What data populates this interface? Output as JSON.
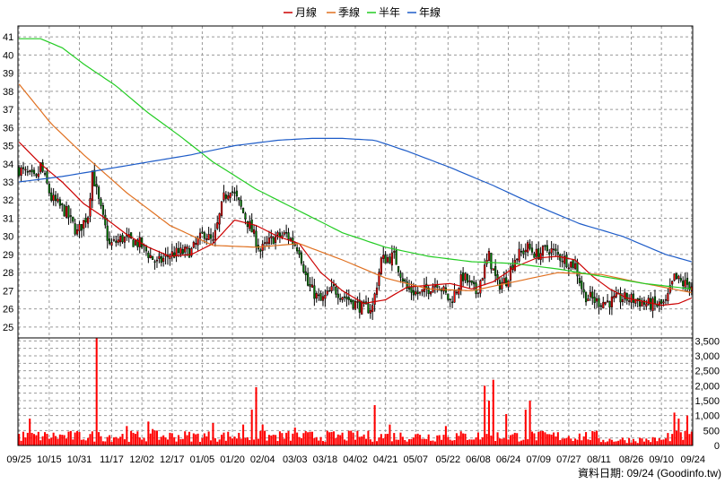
{
  "chart_data": [
    {
      "type": "candlestick",
      "legend": [
        {
          "name": "月線",
          "color": "#cc0000"
        },
        {
          "name": "季線",
          "color": "#e07020"
        },
        {
          "name": "半年",
          "color": "#22cc22"
        },
        {
          "name": "年線",
          "color": "#1e5cc8"
        }
      ],
      "legend_position": "top-center",
      "grid": true,
      "ylim": [
        24.4,
        41.6
      ],
      "y_ticks": [
        25,
        26,
        27,
        28,
        29,
        30,
        31,
        32,
        33,
        34,
        35,
        36,
        37,
        38,
        39,
        40,
        41
      ],
      "x_labels": [
        "09/25",
        "10/15",
        "10/31",
        "11/17",
        "12/02",
        "12/17",
        "01/05",
        "01/20",
        "02/04",
        "03/03",
        "03/18",
        "04/02",
        "04/21",
        "05/07",
        "05/22",
        "06/08",
        "06/24",
        "07/09",
        "07/27",
        "08/11",
        "08/26",
        "09/10",
        "09/24"
      ],
      "candle_colors": {
        "up": "#ff0000",
        "down": "#008000",
        "outline": "#000000"
      },
      "price_anchors": [
        [
          0,
          33.7
        ],
        [
          8,
          33.1
        ],
        [
          10,
          33.9
        ],
        [
          15,
          32.1
        ],
        [
          22,
          31.3
        ],
        [
          27,
          30.2
        ],
        [
          32,
          31.2
        ],
        [
          34,
          33.6
        ],
        [
          37,
          31.9
        ],
        [
          42,
          29.5
        ],
        [
          48,
          29.9
        ],
        [
          56,
          29.6
        ],
        [
          64,
          28.5
        ],
        [
          70,
          29.0
        ],
        [
          80,
          29.2
        ],
        [
          86,
          30.2
        ],
        [
          90,
          29.6
        ],
        [
          95,
          32.1
        ],
        [
          98,
          32.7
        ],
        [
          102,
          31.8
        ],
        [
          108,
          30.3
        ],
        [
          112,
          29.2
        ],
        [
          118,
          29.9
        ],
        [
          124,
          30.1
        ],
        [
          130,
          29.3
        ],
        [
          134,
          27.3
        ],
        [
          140,
          26.4
        ],
        [
          146,
          27.1
        ],
        [
          152,
          26.6
        ],
        [
          160,
          26.0
        ],
        [
          164,
          26.1
        ],
        [
          168,
          28.7
        ],
        [
          174,
          28.9
        ],
        [
          180,
          27.1
        ],
        [
          186,
          26.8
        ],
        [
          194,
          27.5
        ],
        [
          200,
          26.4
        ],
        [
          206,
          27.8
        ],
        [
          212,
          26.9
        ],
        [
          218,
          28.9
        ],
        [
          222,
          27.3
        ],
        [
          226,
          27.6
        ],
        [
          230,
          28.8
        ],
        [
          236,
          29.4
        ],
        [
          240,
          29.0
        ],
        [
          246,
          29.3
        ],
        [
          252,
          28.8
        ],
        [
          258,
          28.4
        ],
        [
          262,
          26.8
        ],
        [
          268,
          26.4
        ],
        [
          274,
          26.4
        ],
        [
          280,
          26.6
        ],
        [
          286,
          26.5
        ],
        [
          290,
          26.3
        ],
        [
          296,
          26.2
        ],
        [
          300,
          26.3
        ],
        [
          304,
          27.7
        ],
        [
          308,
          27.4
        ],
        [
          312,
          27.3
        ]
      ],
      "ma_series": [
        {
          "name": "月線",
          "points": [
            [
              0,
              35.2
            ],
            [
              10,
              34.0
            ],
            [
              20,
              33.0
            ],
            [
              30,
              31.8
            ],
            [
              40,
              31.0
            ],
            [
              50,
              30.1
            ],
            [
              60,
              29.4
            ],
            [
              70,
              28.9
            ],
            [
              80,
              29.0
            ],
            [
              90,
              29.6
            ],
            [
              100,
              30.9
            ],
            [
              110,
              30.6
            ],
            [
              120,
              30.0
            ],
            [
              130,
              29.6
            ],
            [
              140,
              28.0
            ],
            [
              150,
              27.0
            ],
            [
              160,
              26.3
            ],
            [
              170,
              26.5
            ],
            [
              180,
              27.2
            ],
            [
              190,
              27.3
            ],
            [
              200,
              27.4
            ],
            [
              210,
              27.1
            ],
            [
              220,
              27.5
            ],
            [
              230,
              28.3
            ],
            [
              240,
              28.8
            ],
            [
              250,
              28.9
            ],
            [
              258,
              28.7
            ],
            [
              266,
              27.8
            ],
            [
              274,
              27.1
            ],
            [
              282,
              26.6
            ],
            [
              290,
              26.4
            ],
            [
              298,
              26.2
            ],
            [
              306,
              26.3
            ],
            [
              312,
              26.6
            ]
          ]
        },
        {
          "name": "季線",
          "points": [
            [
              0,
              38.4
            ],
            [
              15,
              36.2
            ],
            [
              30,
              34.5
            ],
            [
              50,
              32.4
            ],
            [
              70,
              30.6
            ],
            [
              90,
              29.5
            ],
            [
              110,
              29.4
            ],
            [
              130,
              29.6
            ],
            [
              150,
              28.7
            ],
            [
              170,
              27.7
            ],
            [
              190,
              27.1
            ],
            [
              210,
              27.0
            ],
            [
              230,
              27.5
            ],
            [
              250,
              28.0
            ],
            [
              270,
              27.9
            ],
            [
              290,
              27.4
            ],
            [
              312,
              26.9
            ]
          ]
        },
        {
          "name": "半年",
          "points": [
            [
              0,
              40.9
            ],
            [
              10,
              40.9
            ],
            [
              20,
              40.4
            ],
            [
              30,
              39.5
            ],
            [
              45,
              38.3
            ],
            [
              60,
              36.8
            ],
            [
              75,
              35.5
            ],
            [
              90,
              34.1
            ],
            [
              110,
              32.6
            ],
            [
              130,
              31.4
            ],
            [
              150,
              30.2
            ],
            [
              170,
              29.4
            ],
            [
              190,
              28.9
            ],
            [
              210,
              28.6
            ],
            [
              230,
              28.5
            ],
            [
              250,
              28.2
            ],
            [
              270,
              27.8
            ],
            [
              290,
              27.4
            ],
            [
              312,
              27.1
            ]
          ]
        },
        {
          "name": "年線",
          "points": [
            [
              0,
              33.0
            ],
            [
              20,
              33.3
            ],
            [
              40,
              33.7
            ],
            [
              60,
              34.1
            ],
            [
              80,
              34.5
            ],
            [
              100,
              35.0
            ],
            [
              120,
              35.3
            ],
            [
              135,
              35.4
            ],
            [
              150,
              35.4
            ],
            [
              165,
              35.3
            ],
            [
              180,
              34.7
            ],
            [
              200,
              33.8
            ],
            [
              220,
              32.8
            ],
            [
              240,
              31.7
            ],
            [
              260,
              30.7
            ],
            [
              280,
              30.0
            ],
            [
              300,
              29.0
            ],
            [
              312,
              28.6
            ]
          ]
        }
      ]
    },
    {
      "type": "bar",
      "ylim": [
        0,
        3600
      ],
      "y_ticks": [
        0,
        250,
        500,
        750,
        1000,
        1250,
        1500,
        1750,
        2000,
        2250,
        2500,
        2750,
        3000,
        3250,
        3500
      ],
      "y_tick_labels": [
        "0",
        "",
        "500",
        "",
        "1,000",
        "",
        "1,500",
        "",
        "2,000",
        "",
        "2,500",
        "",
        "3,000",
        "",
        "3,500"
      ],
      "bar_color": "#ff0000",
      "spikes": [
        [
          5,
          900
        ],
        [
          36,
          3600
        ],
        [
          50,
          650
        ],
        [
          60,
          800
        ],
        [
          62,
          550
        ],
        [
          90,
          750
        ],
        [
          104,
          700
        ],
        [
          108,
          1200
        ],
        [
          110,
          1950
        ],
        [
          113,
          700
        ],
        [
          128,
          600
        ],
        [
          165,
          1350
        ],
        [
          172,
          700
        ],
        [
          198,
          650
        ],
        [
          216,
          2000
        ],
        [
          218,
          1500
        ],
        [
          220,
          2200
        ],
        [
          226,
          1050
        ],
        [
          235,
          1200
        ],
        [
          237,
          1500
        ],
        [
          304,
          1100
        ],
        [
          306,
          900
        ],
        [
          310,
          1000
        ]
      ],
      "quiet_ranges": [
        [
          270,
          300,
          220
        ]
      ]
    }
  ],
  "source_note": "資料日期: 09/24 (Goodinfo.tw)"
}
